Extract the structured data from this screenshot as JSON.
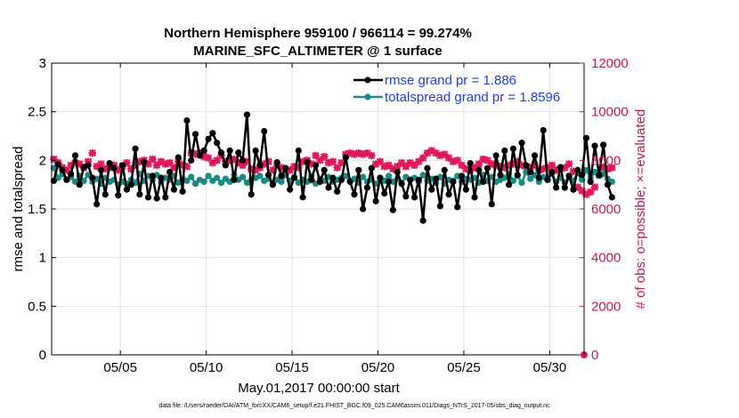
{
  "colors": {
    "rmse": "#000000",
    "spread": "#1a8a84",
    "obs": "#e0185a",
    "right_axis": "#c8155a",
    "legend_text": "#1f3fd6",
    "grid": "#e2e2e2"
  },
  "chart_data": {
    "type": "line",
    "title": "Northern Hemisphere 959100 / 966114 = 99.274%",
    "subtitle": "MARINE_SFC_ALTIMETER @ 1 surface",
    "xlabel": "May.01,2017 00:00:00 start",
    "ylabel_left": "rmse and totalspread",
    "ylabel_right": "# of obs: o=possible; ×=evaluated",
    "footnote": "data file: /Users/raeder/DAI/ATM_forcXX/CAM6_setup/f.e21.FHIST_BGC.f09_025.CAM6assim.011/Diags_NTrS_2017-05/obs_diag_output.nc",
    "x_day_range": [
      1,
      32
    ],
    "ylim_left": [
      0,
      3
    ],
    "ylim_right": [
      0,
      12000
    ],
    "xticks": [
      {
        "day": 5,
        "label": "05/05"
      },
      {
        "day": 10,
        "label": "05/10"
      },
      {
        "day": 15,
        "label": "05/15"
      },
      {
        "day": 20,
        "label": "05/20"
      },
      {
        "day": 25,
        "label": "05/25"
      },
      {
        "day": 30,
        "label": "05/30"
      }
    ],
    "yticks_left": [
      {
        "v": 0,
        "label": "0"
      },
      {
        "v": 0.5,
        "label": "0.5"
      },
      {
        "v": 1,
        "label": "1"
      },
      {
        "v": 1.5,
        "label": "1.5"
      },
      {
        "v": 2,
        "label": "2"
      },
      {
        "v": 2.5,
        "label": "2.5"
      },
      {
        "v": 3,
        "label": "3"
      }
    ],
    "yticks_right": [
      {
        "v": 0,
        "label": "0"
      },
      {
        "v": 2000,
        "label": "2000"
      },
      {
        "v": 4000,
        "label": "4000"
      },
      {
        "v": 6000,
        "label": "6000"
      },
      {
        "v": 8000,
        "label": "8000"
      },
      {
        "v": 10000,
        "label": "10000"
      },
      {
        "v": 12000,
        "label": "12000"
      }
    ],
    "legend": [
      {
        "key": "rmse",
        "label": "rmse grand pr = 1.886"
      },
      {
        "key": "spread",
        "label": "totalspread grand pr = 1.8596"
      }
    ],
    "x_start_day": 1.125,
    "x_step_day": 0.25,
    "rmse": [
      1.79,
      1.96,
      1.9,
      1.8,
      1.86,
      2.05,
      1.75,
      1.93,
      1.95,
      1.82,
      1.55,
      1.9,
      1.65,
      1.97,
      1.92,
      1.64,
      1.95,
      1.7,
      1.75,
      2.12,
      1.65,
      1.98,
      1.62,
      1.84,
      1.61,
      1.82,
      1.62,
      1.88,
      1.7,
      2.03,
      1.68,
      2.41,
      2.0,
      2.27,
      2.05,
      2.1,
      2.22,
      2.28,
      2.18,
      2.08,
      1.95,
      2.1,
      1.8,
      2.08,
      2.0,
      2.47,
      1.65,
      2.1,
      1.95,
      2.3,
      1.85,
      1.75,
      1.98,
      1.84,
      1.92,
      1.7,
      1.82,
      2.1,
      1.62,
      1.98,
      1.8,
      1.95,
      1.78,
      1.9,
      1.72,
      1.82,
      1.68,
      1.8,
      2.03,
      1.78,
      1.65,
      1.9,
      1.5,
      1.72,
      1.92,
      1.58,
      1.82,
      1.66,
      1.78,
      1.49,
      1.88,
      1.76,
      1.63,
      1.8,
      1.62,
      1.8,
      1.38,
      1.92,
      1.7,
      1.81,
      1.53,
      1.9,
      1.65,
      1.78,
      1.52,
      1.84,
      1.7,
      1.97,
      1.62,
      1.9,
      1.78,
      1.92,
      1.55,
      2.05,
      1.85,
      2.1,
      1.75,
      2.12,
      1.85,
      2.18,
      1.95,
      1.88,
      2.05,
      1.82,
      2.31,
      1.8,
      1.88,
      1.72,
      1.93,
      1.72,
      1.84,
      1.7,
      1.9,
      1.85,
      2.23,
      1.78,
      2.15,
      1.85,
      2.16,
      1.75,
      1.62
    ],
    "totalspread": [
      1.92,
      1.82,
      1.86,
      1.8,
      1.83,
      1.78,
      1.84,
      1.79,
      1.85,
      1.78,
      1.81,
      1.76,
      1.82,
      1.78,
      1.8,
      1.75,
      1.78,
      1.76,
      1.8,
      1.77,
      1.86,
      1.79,
      1.84,
      1.8,
      1.85,
      1.78,
      1.82,
      1.8,
      1.84,
      1.77,
      1.81,
      1.79,
      1.83,
      1.76,
      1.8,
      1.78,
      1.84,
      1.79,
      1.82,
      1.77,
      1.81,
      1.78,
      1.85,
      1.8,
      1.83,
      1.77,
      1.8,
      1.82,
      1.84,
      1.79,
      1.81,
      1.76,
      1.8,
      1.78,
      1.85,
      1.79,
      1.83,
      1.77,
      1.8,
      1.78,
      1.84,
      1.76,
      1.81,
      1.79,
      1.83,
      1.78,
      1.8,
      1.82,
      1.84,
      1.79,
      1.81,
      1.77,
      1.83,
      1.78,
      1.8,
      1.76,
      1.82,
      1.79,
      1.84,
      1.78,
      1.81,
      1.77,
      1.83,
      1.8,
      1.82,
      1.78,
      1.85,
      1.79,
      1.81,
      1.77,
      1.83,
      1.76,
      1.8,
      1.79,
      1.84,
      1.78,
      1.81,
      1.8,
      1.82,
      1.77,
      1.85,
      1.79,
      1.83,
      1.78,
      1.8,
      1.82,
      1.86,
      1.79,
      1.84,
      1.77,
      1.88,
      1.81,
      1.85,
      1.78,
      1.83,
      1.8,
      1.86,
      1.78,
      1.82,
      1.77,
      1.84,
      1.79,
      1.87,
      1.8,
      1.9,
      1.82,
      1.88,
      1.84,
      1.86,
      1.81,
      1.78
    ],
    "obs_evaluated": [
      8050,
      7900,
      7700,
      7600,
      7800,
      7900,
      7850,
      7700,
      7950,
      8300,
      7750,
      7850,
      7650,
      7700,
      7800,
      7600,
      7750,
      7900,
      7650,
      7800,
      7950,
      8000,
      7850,
      8050,
      7800,
      7950,
      7850,
      7900,
      7700,
      7950,
      7800,
      7750,
      8300,
      8250,
      8300,
      8150,
      8100,
      7900,
      8000,
      8200,
      7950,
      8000,
      8050,
      7900,
      7800,
      7950,
      7650,
      7600,
      7700,
      7850,
      7950,
      7600,
      7800,
      7700,
      7500,
      7600,
      7750,
      7700,
      7950,
      8000,
      7850,
      8200,
      8000,
      8150,
      7900,
      7950,
      7700,
      7900,
      8250,
      8300,
      8250,
      8300,
      8250,
      8300,
      8200,
      7850,
      7950,
      7750,
      7800,
      7650,
      7750,
      7900,
      7750,
      7900,
      7800,
      7950,
      8100,
      8300,
      8400,
      8300,
      8200,
      8250,
      8100,
      7950,
      8000,
      7800,
      7650,
      7600,
      7700,
      7850,
      8050,
      8000,
      7850,
      7800,
      7750,
      7700,
      7800,
      7850,
      7950,
      7800,
      7750,
      7700,
      7800,
      7600,
      7650,
      7700,
      7800,
      7600,
      7650,
      7700,
      7850,
      7550,
      6900,
      6750,
      6600,
      6700,
      6900,
      7400,
      7700,
      7650,
      7700
    ],
    "obs_end_point": {
      "day": 32,
      "value": 0
    }
  }
}
